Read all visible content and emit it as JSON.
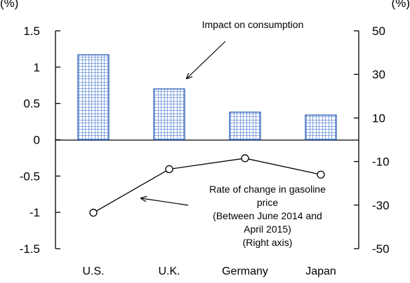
{
  "chart_data": {
    "type": "bar+line",
    "categories": [
      "U.S.",
      "U.K.",
      "Germany",
      "Japan"
    ],
    "left_axis": {
      "unit": "(%)",
      "ylim": [
        -1.5,
        1.5
      ],
      "ticks": [
        "1.5",
        "1",
        "0.5",
        "0",
        "-0.5",
        "-1",
        "-1.5"
      ],
      "tick_values": [
        1.5,
        1,
        0.5,
        0,
        -0.5,
        -1,
        -1.5
      ]
    },
    "right_axis": {
      "unit": "(%)",
      "ylim": [
        -50,
        50
      ],
      "ticks": [
        "50",
        "30",
        "10",
        "-10",
        "-30",
        "-50"
      ],
      "tick_values": [
        50,
        30,
        10,
        -10,
        -30,
        -50
      ]
    },
    "series": [
      {
        "name": "Impact on consumption",
        "type": "bar",
        "axis": "left",
        "pattern": "blue-grid",
        "color": "#1f5fbf",
        "values": [
          1.17,
          0.7,
          0.38,
          0.34
        ]
      },
      {
        "name": "Rate of change in gasoline price",
        "type": "line",
        "axis": "right",
        "marker": "open-circle",
        "color": "#000000",
        "values": [
          -33.5,
          -13.5,
          -8.5,
          -16
        ]
      }
    ],
    "annotations": {
      "bars": "Impact on consumption",
      "line": [
        "Rate of change in gasoline",
        "price",
        "(Between June 2014 and",
        "April 2015)",
        "(Right axis)"
      ]
    },
    "grid": false,
    "legend": "none"
  }
}
